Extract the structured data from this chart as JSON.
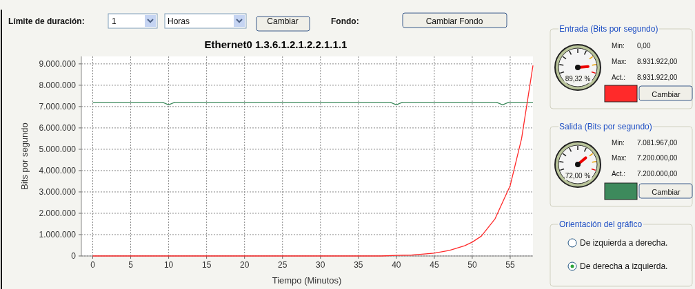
{
  "chart_data": [
    {
      "type": "line",
      "title": "Ethernet0 1.3.6.1.2.1.2.2.1.1.1",
      "xlabel": "Tiempo (Minutos)",
      "ylabel": "Bits por segundo",
      "xlim": [
        -1.5,
        58
      ],
      "xticks": [
        0,
        5,
        10,
        15,
        20,
        25,
        30,
        35,
        40,
        45,
        50,
        55
      ],
      "ylim": [
        0,
        9350000
      ],
      "yticks": [
        {
          "value": 0,
          "label": "0"
        },
        {
          "value": 1000000,
          "label": "1.000.000"
        },
        {
          "value": 2000000,
          "label": "2.000.000"
        },
        {
          "value": 3000000,
          "label": "3.000.000"
        },
        {
          "value": 4000000,
          "label": "4.000.000"
        },
        {
          "value": 5000000,
          "label": "5.000.000"
        },
        {
          "value": 6000000,
          "label": "6.000.000"
        },
        {
          "value": 7000000,
          "label": "7.000.000"
        },
        {
          "value": 8000000,
          "label": "8.000.000"
        },
        {
          "value": 9000000,
          "label": "9.000.000"
        }
      ],
      "grid": true,
      "line_style": "solid",
      "marker": "none",
      "series": [
        {
          "color": "#3d8a5c",
          "x": [
            0,
            9.2,
            10,
            10.8,
            39.2,
            40,
            40.8,
            53.2,
            54,
            54.8,
            58
          ],
          "values": [
            7200000,
            7200000,
            7080000,
            7200000,
            7200000,
            7080000,
            7200000,
            7200000,
            7080000,
            7200000,
            7200000
          ]
        },
        {
          "color": "#ff2a2a",
          "x": [
            0,
            38,
            40,
            42,
            45,
            47,
            49,
            50,
            51.2,
            53,
            55,
            56.5,
            58
          ],
          "values": [
            0,
            0,
            30000,
            40000,
            130000,
            260000,
            480000,
            650000,
            930000,
            1740000,
            3300000,
            5500000,
            8930000
          ]
        }
      ]
    },
    {
      "type": "other",
      "annotations": [
        "Límite de duración:",
        "1",
        "Horas",
        "Cambiar",
        "Fondo:",
        "Cambiar Fondo",
        "Entrada (Bits por segundo)",
        "Min:",
        "0,00",
        "Max:",
        "8.931.922,00",
        "Act.:",
        "8.931.922,00",
        "89,32 %",
        "Cambiar",
        "Salida (Bits por segundo)",
        "Min:",
        "7.081.967,00",
        "Max:",
        "7.200.000,00",
        "Act.:",
        "7.200.000,00",
        "72,00 %",
        "Cambiar",
        "Orientación del gráfico",
        "De izquierda a derecha.",
        "De derecha a izquierda."
      ]
    }
  ]
}
